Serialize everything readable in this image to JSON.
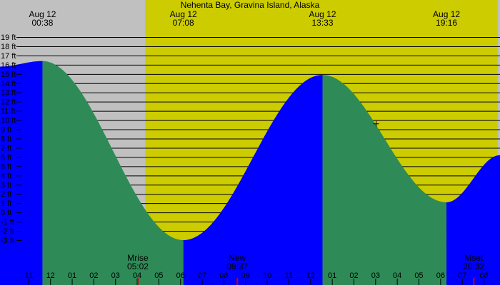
{
  "chart_data": {
    "type": "area",
    "title": "Nehenta Bay, Gravina Island, Alaska",
    "y_unit": "ft",
    "ylim": [
      -4,
      19.8
    ],
    "y_ticks": [
      -3,
      -2,
      -1,
      0,
      1,
      2,
      3,
      4,
      5,
      6,
      7,
      8,
      9,
      10,
      11,
      12,
      13,
      14,
      15,
      16,
      17,
      18,
      19
    ],
    "hour_ticks": [
      "11",
      "12",
      "01",
      "02",
      "03",
      "04",
      "05",
      "06",
      "07",
      "08",
      "09",
      "10",
      "11",
      "12",
      "01",
      "02",
      "03",
      "04",
      "05",
      "06",
      "07",
      "08",
      "09"
    ],
    "hour_range": [
      -1.33,
      21.74
    ],
    "daylight": {
      "start": 5.37,
      "end": 21.63
    },
    "series": [
      {
        "values": [
          [
            -1.33,
            15.8
          ],
          [
            0.63,
            16.4
          ],
          [
            7.13,
            -3.0
          ],
          [
            13.55,
            14.9
          ],
          [
            19.27,
            1.1
          ],
          [
            21.74,
            6.2
          ]
        ]
      }
    ],
    "tide_events": [
      {
        "date": "Aug 12",
        "time": "00:38"
      },
      {
        "date": "Aug 12",
        "time": "07:08"
      },
      {
        "date": "Aug 12",
        "time": "13:33"
      },
      {
        "date": "Aug 12",
        "time": "19:16"
      }
    ],
    "moon_events": [
      {
        "label": "Mrise",
        "time": "05:02",
        "hour": 5.03
      },
      {
        "label": "New",
        "time": "09:37",
        "hour": 9.62
      },
      {
        "label": "Mset",
        "time": "20:32",
        "hour": 20.53
      }
    ],
    "marker": {
      "hour": 16.03,
      "value": 9.6
    },
    "colors": {
      "background": "#c0c0c0",
      "daylight": "#cccc00",
      "rising": "#0000ff",
      "falling": "#2e8b57",
      "grid": "#000000",
      "moon_tick": "#cc0000"
    }
  }
}
